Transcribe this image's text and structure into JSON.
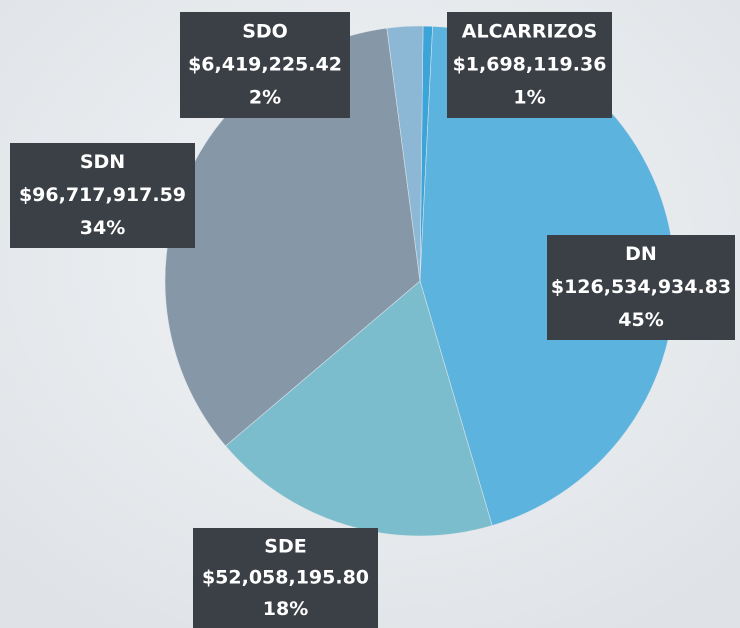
{
  "chart_data": {
    "type": "pie",
    "categories": [
      "ALCARRIZOS",
      "DN",
      "SDE",
      "SDN",
      "SDO"
    ],
    "values": [
      1698119.36,
      126534934.83,
      52058195.8,
      96717917.59,
      6419225.42
    ],
    "value_labels": [
      "$1,698,119.36",
      "$126,534,934.83",
      "$52,058,195.80",
      "$96,717,917.59",
      "$6,419,225.42"
    ],
    "percent_labels": [
      "1%",
      "45%",
      "18%",
      "34%",
      "2%"
    ],
    "colors": [
      "#3ba4d8",
      "#5cb3de",
      "#7bbdcc",
      "#8697a8",
      "#8cb8d6"
    ]
  }
}
